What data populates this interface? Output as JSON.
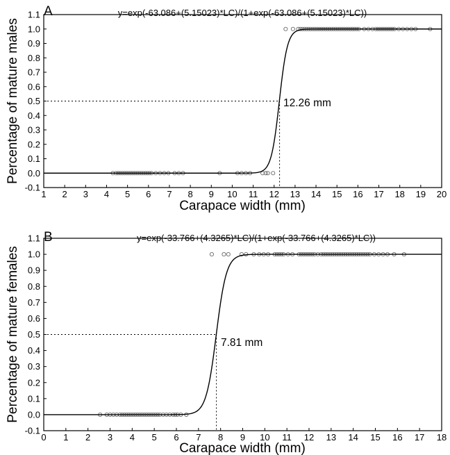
{
  "chart_data": [
    {
      "type": "scatter",
      "panel_label": "A",
      "equation": "y=exp(-63.086+(5.15023)*LC)/(1+exp(-63.086+(5.15023)*LC))",
      "xlabel": "Carapace width (mm)",
      "ylabel": "Percentage of mature males",
      "xlim": [
        1,
        20
      ],
      "ylim": [
        -0.1,
        1.1
      ],
      "xticks": [
        "1",
        "2",
        "3",
        "4",
        "5",
        "6",
        "7",
        "8",
        "9",
        "10",
        "11",
        "12",
        "13",
        "14",
        "15",
        "16",
        "17",
        "18",
        "19",
        "20"
      ],
      "yticks": [
        "-0.1",
        "0.0",
        "0.1",
        "0.2",
        "0.3",
        "0.4",
        "0.5",
        "0.6",
        "0.7",
        "0.8",
        "0.9",
        "1.0",
        "1.1"
      ],
      "curve": {
        "a": -63.086,
        "b": 5.15023
      },
      "l50_value": 12.26,
      "l50_label": "12.26 mm",
      "grid": false,
      "series": [
        {
          "values_y": 0,
          "x": [
            4.3,
            4.45,
            4.55,
            4.65,
            4.75,
            4.85,
            4.95,
            5.05,
            5.15,
            5.25,
            5.35,
            5.45,
            5.55,
            5.65,
            5.75,
            5.85,
            5.95,
            6.05,
            6.15,
            6.35,
            6.55,
            6.75,
            6.95,
            7.25,
            7.45,
            7.65,
            9.4,
            10.25,
            10.45,
            10.65,
            10.85,
            11.45,
            11.6,
            11.7,
            11.95
          ]
        },
        {
          "values_y": 1,
          "x": [
            12.55,
            12.9,
            13.15,
            13.25,
            13.35,
            13.45,
            13.55,
            13.65,
            13.75,
            13.85,
            13.95,
            14.05,
            14.15,
            14.25,
            14.35,
            14.45,
            14.55,
            14.65,
            14.75,
            14.85,
            14.95,
            15.05,
            15.15,
            15.25,
            15.35,
            15.45,
            15.55,
            15.65,
            15.75,
            15.85,
            15.95,
            16.05,
            16.3,
            16.5,
            16.7,
            16.85,
            16.95,
            17.05,
            17.15,
            17.25,
            17.35,
            17.45,
            17.55,
            17.65,
            17.75,
            17.95,
            18.15,
            18.35,
            18.55,
            18.75,
            19.45
          ]
        }
      ]
    },
    {
      "type": "scatter",
      "panel_label": "B",
      "equation": "y=exp(-33.766+(4.3265)*LC)/(1+exp(-33.766+(4.3265)*LC))",
      "xlabel": "Carapace width (mm)",
      "ylabel": "Percentage of mature females",
      "xlim": [
        0,
        18
      ],
      "ylim": [
        -0.1,
        1.1
      ],
      "xticks": [
        "0",
        "1",
        "2",
        "3",
        "4",
        "5",
        "6",
        "7",
        "8",
        "9",
        "10",
        "11",
        "12",
        "13",
        "14",
        "15",
        "16",
        "17",
        "18"
      ],
      "yticks": [
        "-0.1",
        "0.0",
        "0.1",
        "0.2",
        "0.3",
        "0.4",
        "0.5",
        "0.6",
        "0.7",
        "0.8",
        "0.9",
        "1.0",
        "1.1"
      ],
      "curve": {
        "a": -33.766,
        "b": 4.3265
      },
      "l50_value": 7.81,
      "l50_label": "7.81 mm",
      "grid": false,
      "series": [
        {
          "values_y": 0,
          "x": [
            2.55,
            2.85,
            3.0,
            3.15,
            3.3,
            3.45,
            3.55,
            3.65,
            3.75,
            3.85,
            3.95,
            4.05,
            4.15,
            4.25,
            4.35,
            4.45,
            4.55,
            4.65,
            4.75,
            4.85,
            4.95,
            5.05,
            5.15,
            5.25,
            5.4,
            5.55,
            5.7,
            5.85,
            5.95,
            6.05,
            6.2,
            6.45
          ]
        },
        {
          "values_y": 1,
          "x": [
            7.6,
            8.15,
            8.35,
            8.95,
            9.15,
            9.5,
            9.75,
            9.95,
            10.15,
            10.45,
            10.55,
            10.65,
            10.75,
            10.85,
            11.05,
            11.25,
            11.55,
            11.65,
            11.75,
            11.85,
            11.95,
            12.05,
            12.15,
            12.25,
            12.4,
            12.55,
            12.65,
            12.75,
            12.85,
            12.95,
            13.05,
            13.15,
            13.25,
            13.35,
            13.45,
            13.55,
            13.65,
            13.75,
            13.85,
            13.95,
            14.05,
            14.15,
            14.25,
            14.35,
            14.45,
            14.55,
            14.65,
            14.75,
            14.95,
            15.15,
            15.35,
            15.55,
            15.85,
            16.3
          ]
        }
      ]
    }
  ]
}
